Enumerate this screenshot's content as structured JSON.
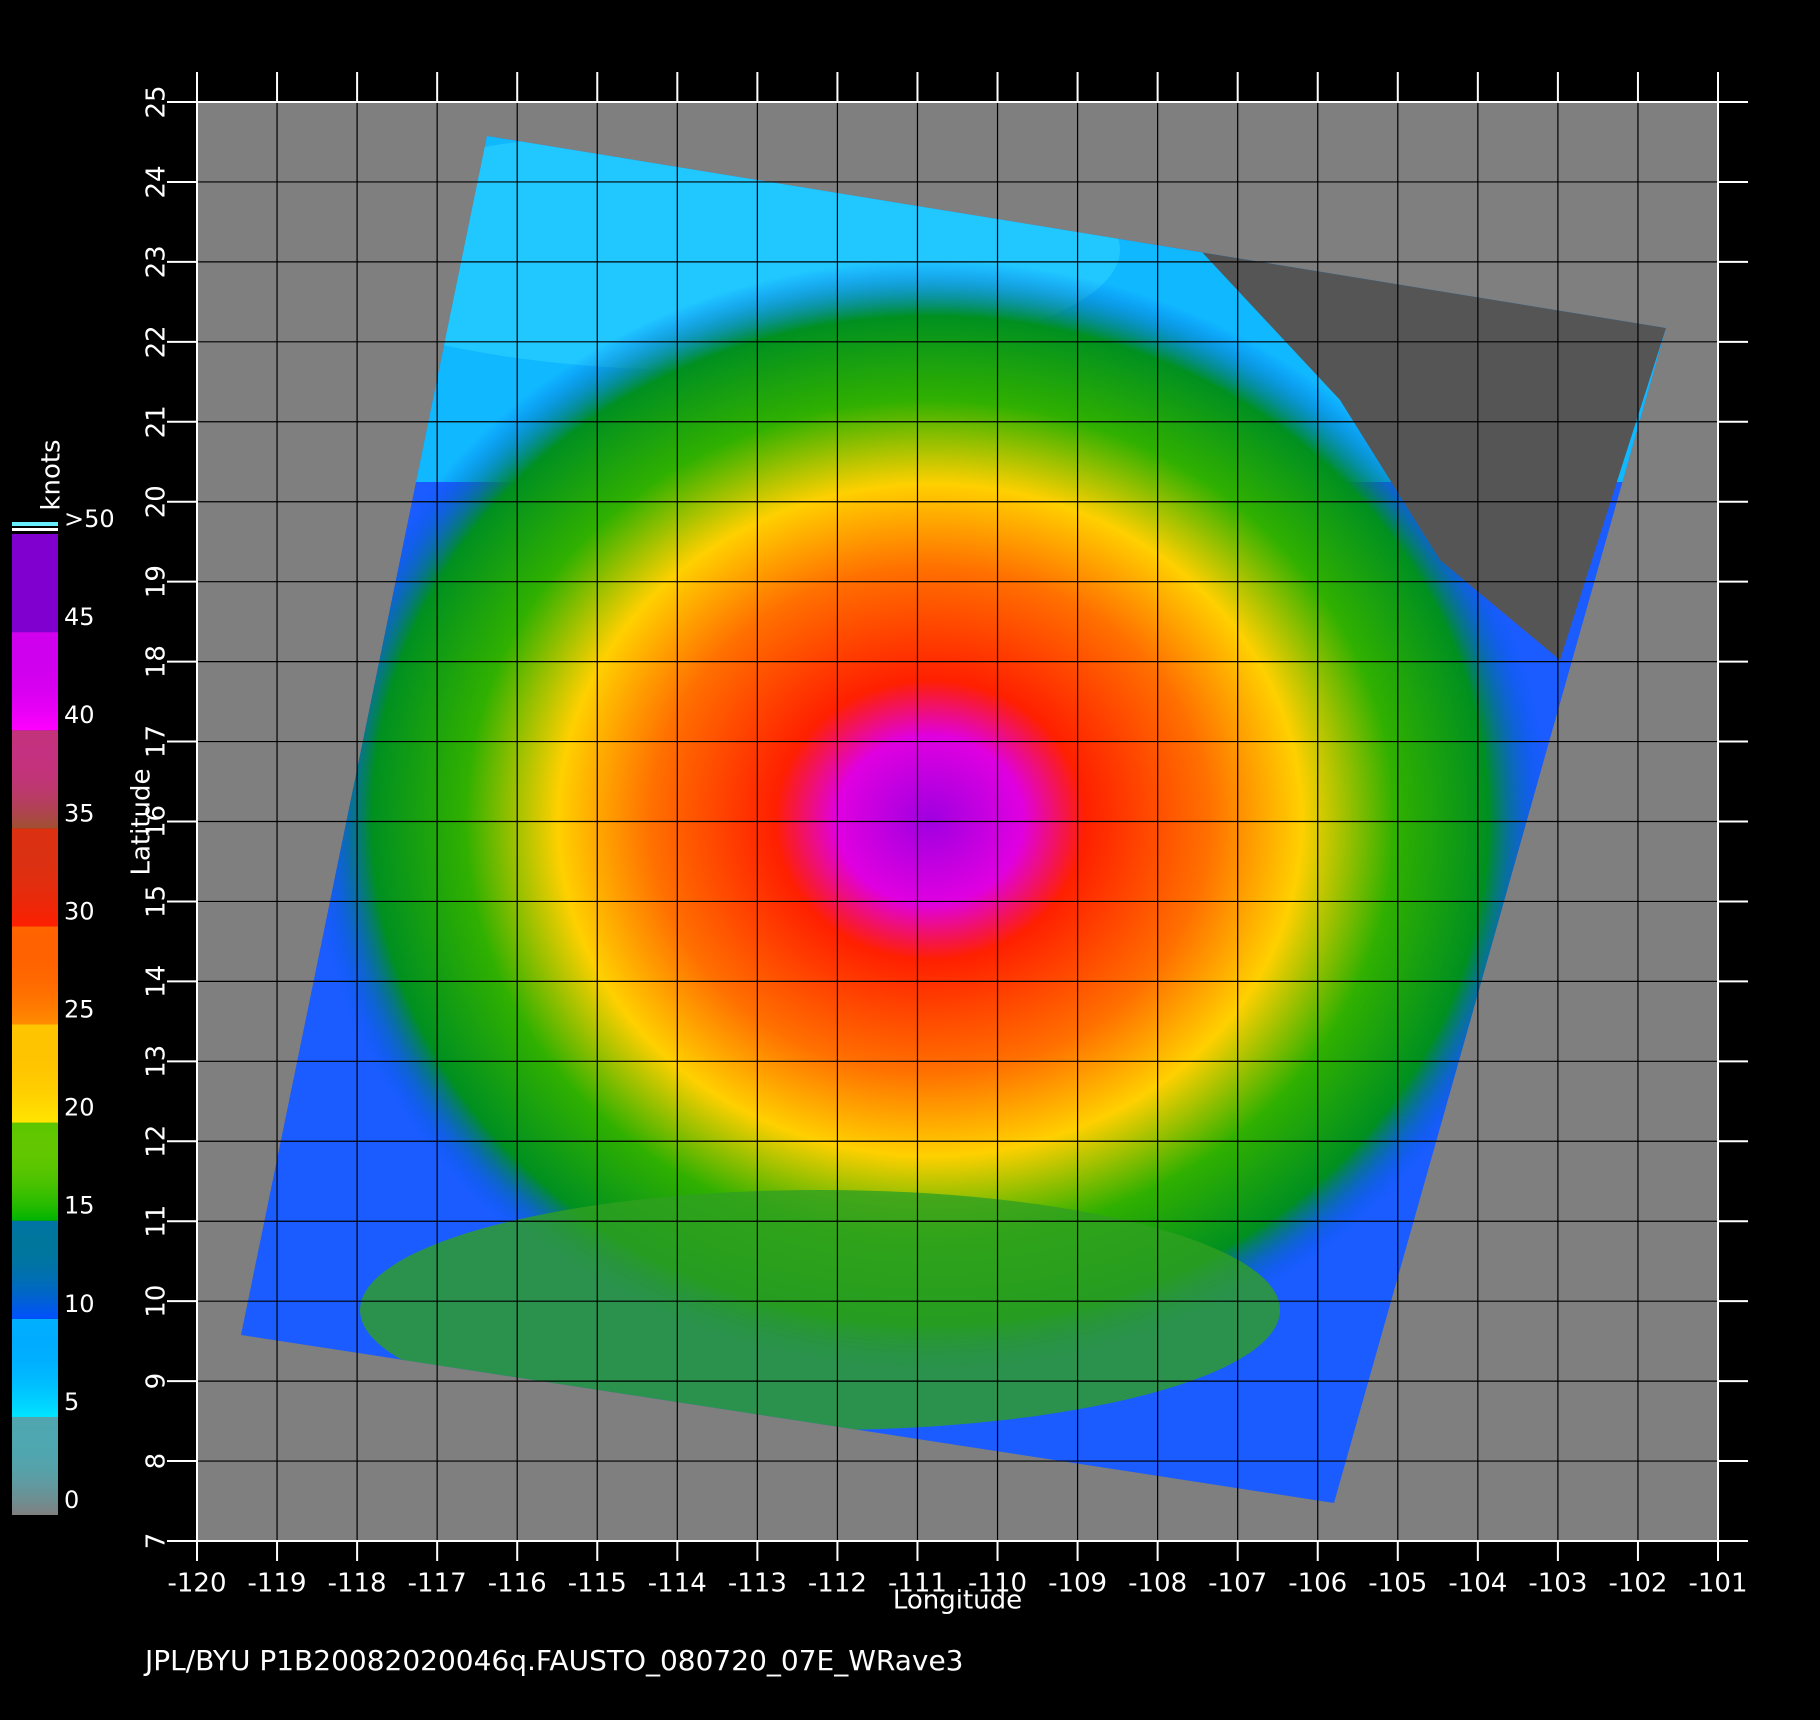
{
  "chart_data": {
    "type": "map",
    "xlabel": "Longitude",
    "ylabel": "Latitude",
    "xlim": [
      -120,
      -101
    ],
    "ylim": [
      7,
      25
    ],
    "xticks": [
      -120,
      -119,
      -118,
      -117,
      -116,
      -115,
      -114,
      -113,
      -112,
      -111,
      -110,
      -109,
      -108,
      -107,
      -106,
      -105,
      -104,
      -103,
      -102,
      -101
    ],
    "yticks": [
      7,
      8,
      9,
      10,
      11,
      12,
      13,
      14,
      15,
      16,
      17,
      18,
      19,
      20,
      21,
      22,
      23,
      24,
      25
    ],
    "grid": true,
    "colorbar": {
      "label": "knots",
      "ticks": [
        0,
        5,
        10,
        15,
        20,
        25,
        30,
        35,
        40,
        45,
        {
          "value": 50,
          "label": ">50"
        }
      ],
      "colors": [
        "#808080",
        "#00e6ff",
        "#0050ff",
        "#00b400",
        "#ffe600",
        "#ff8c00",
        "#ff1e00",
        "#a05030",
        "#ff00ff",
        "#8000d0"
      ]
    },
    "footer": "JPL/BYU  P1B20082020046q.FAUSTO_080720_07E_WRave3"
  }
}
